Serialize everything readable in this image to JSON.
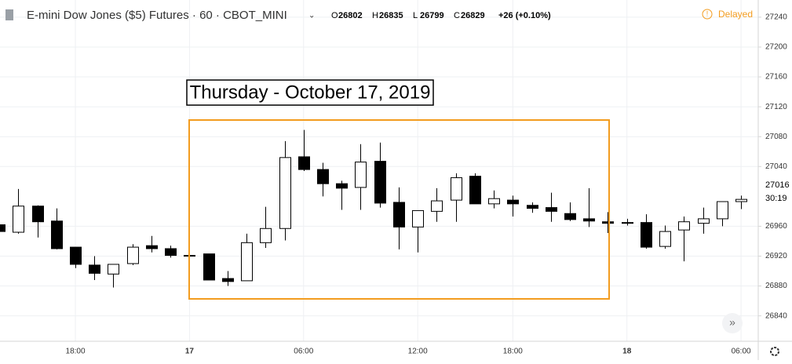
{
  "chart_data": {
    "type": "candlestick",
    "title": "E-mini Dow Jones ($5) Futures · 60 · CBOT_MINI",
    "ohlc_legend": [
      {
        "label": "O",
        "value": "26802"
      },
      {
        "label": "H",
        "value": "26835"
      },
      {
        "label": "L",
        "value": "26799"
      },
      {
        "label": "C",
        "value": "26829"
      }
    ],
    "change": "+26 (+0.10%)",
    "status": "Delayed",
    "annotation": "Thursday - October 17, 2019",
    "price_tag": {
      "value": "27016",
      "countdown": "30:19"
    },
    "categories": [
      null,
      null,
      null,
      null,
      "18:00",
      null,
      null,
      null,
      null,
      null,
      "17",
      null,
      null,
      null,
      null,
      null,
      "06:00",
      null,
      null,
      null,
      null,
      null,
      "12:00",
      null,
      null,
      null,
      null,
      "18:00",
      null,
      null,
      null,
      null,
      null,
      "18",
      null,
      null,
      null,
      null,
      null,
      "06:00"
    ],
    "series": [
      {
        "up_color": "#ffffff",
        "down_color": "#000000",
        "edge_color": "#000000",
        "open": [
          26962,
          26952,
          26987,
          26967,
          26932,
          26908,
          26896,
          26910,
          26934,
          26930,
          26921,
          26923,
          26890,
          26887,
          26938,
          26957,
          27053,
          27036,
          27017,
          27012,
          27047,
          26992,
          26959,
          26980,
          26995,
          27027,
          26990,
          26995,
          26988,
          26985,
          26977,
          26970,
          26966,
          26965,
          26965,
          26933,
          26955,
          26964,
          26970,
          26993
        ],
        "high": [
          26963,
          27010,
          26988,
          26984,
          26932,
          26920,
          26909,
          26936,
          26947,
          26934,
          26928,
          26923,
          26900,
          26950,
          26986,
          27074,
          27089,
          27045,
          27021,
          27070,
          27072,
          27012,
          26981,
          27011,
          27031,
          27031,
          27008,
          27001,
          26992,
          27005,
          26992,
          27011,
          26979,
          26970,
          26976,
          26961,
          26973,
          26985,
          26993,
          27001
        ],
        "low": [
          26953,
          26950,
          26945,
          26929,
          26904,
          26888,
          26878,
          26908,
          26925,
          26918,
          26917,
          26888,
          26880,
          26887,
          26931,
          26941,
          27034,
          27000,
          26982,
          26982,
          26985,
          26929,
          26925,
          26966,
          26966,
          26990,
          26984,
          26973,
          26978,
          26966,
          26967,
          26959,
          26951,
          26961,
          26930,
          26930,
          26913,
          26950,
          26960,
          26983
        ],
        "close": [
          26953,
          26987,
          26966,
          26930,
          26909,
          26897,
          26909,
          26932,
          26930,
          26921,
          26920,
          26888,
          26886,
          26938,
          26957,
          27052,
          27036,
          27017,
          27011,
          27046,
          26991,
          26959,
          26981,
          26994,
          27025,
          26990,
          26997,
          26990,
          26984,
          26980,
          26969,
          26967,
          26964,
          26964,
          26932,
          26953,
          26966,
          26970,
          26993,
          26996
        ]
      }
    ],
    "ylim": [
      26806,
      27263
    ],
    "yticks": [
      26840,
      26880,
      26920,
      26960,
      27040,
      27080,
      27120,
      27160,
      27200,
      27240
    ],
    "grid": true,
    "highlight_color": "#f39c1f"
  }
}
